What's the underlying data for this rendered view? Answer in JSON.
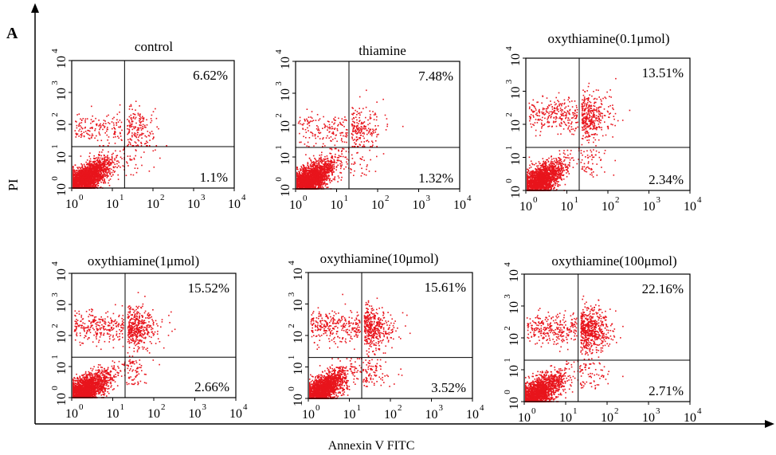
{
  "figure": {
    "panel_letter": "A",
    "x_axis_label": "Annexin V FITC",
    "y_axis_label": "PI"
  },
  "colors": {
    "dots": "#e8141c",
    "axes": "#000000",
    "background": "#ffffff"
  },
  "chart_data": [
    {
      "type": "scatter",
      "title": "control",
      "upper_right_pct": "6.62%",
      "lower_right_pct": "1.1%",
      "x_scale": "log",
      "y_scale": "log",
      "xlim": [
        1,
        10000
      ],
      "ylim": [
        1,
        10000
      ],
      "x_ticks": [
        "10",
        "10",
        "10",
        "10",
        "10"
      ],
      "x_tick_exponents": [
        "0",
        "1",
        "2",
        "3",
        "4"
      ],
      "y_ticks": [
        "10",
        "10",
        "10",
        "10",
        "10"
      ],
      "y_tick_exponents": [
        "0",
        "1",
        "2",
        "3",
        "4"
      ],
      "quadrant_gate": [
        20,
        20
      ],
      "density": {
        "lower_left": 0.86,
        "upper_left": 0.0,
        "lower_right": 0.011,
        "upper_right": 0.066,
        "upper_left_band": 0.06
      }
    },
    {
      "type": "scatter",
      "title": "thiamine",
      "upper_right_pct": "7.48%",
      "lower_right_pct": "1.32%",
      "x_scale": "log",
      "y_scale": "log",
      "xlim": [
        1,
        10000
      ],
      "ylim": [
        1,
        10000
      ],
      "x_ticks": [
        "10",
        "10",
        "10",
        "10",
        "10"
      ],
      "x_tick_exponents": [
        "0",
        "1",
        "2",
        "3",
        "4"
      ],
      "y_ticks": [
        "10",
        "10",
        "10",
        "10",
        "10"
      ],
      "y_tick_exponents": [
        "0",
        "1",
        "2",
        "3",
        "4"
      ],
      "quadrant_gate": [
        20,
        20
      ],
      "density": {
        "lower_left": 0.85,
        "upper_left": 0.0,
        "lower_right": 0.013,
        "upper_right": 0.075,
        "upper_left_band": 0.06
      }
    },
    {
      "type": "scatter",
      "title": "oxythiamine(0.1μmol)",
      "upper_right_pct": "13.51%",
      "lower_right_pct": "2.34%",
      "x_scale": "log",
      "y_scale": "log",
      "xlim": [
        1,
        10000
      ],
      "ylim": [
        1,
        10000
      ],
      "x_ticks": [
        "10",
        "10",
        "10",
        "10",
        "10"
      ],
      "x_tick_exponents": [
        "0",
        "1",
        "2",
        "3",
        "4"
      ],
      "y_ticks": [
        "10",
        "10",
        "10",
        "10",
        "10"
      ],
      "y_tick_exponents": [
        "0",
        "1",
        "2",
        "3",
        "4"
      ],
      "quadrant_gate": [
        20,
        20
      ],
      "density": {
        "lower_left": 0.74,
        "upper_left": 0.0,
        "lower_right": 0.023,
        "upper_right": 0.135,
        "upper_left_band": 0.1
      }
    },
    {
      "type": "scatter",
      "title": "oxythiamine(1μmol)",
      "upper_right_pct": "15.52%",
      "lower_right_pct": "2.66%",
      "x_scale": "log",
      "y_scale": "log",
      "xlim": [
        1,
        10000
      ],
      "ylim": [
        1,
        10000
      ],
      "x_ticks": [
        "10",
        "10",
        "10",
        "10",
        "10"
      ],
      "x_tick_exponents": [
        "0",
        "1",
        "2",
        "3",
        "4"
      ],
      "y_ticks": [
        "10",
        "10",
        "10",
        "10",
        "10"
      ],
      "y_tick_exponents": [
        "0",
        "1",
        "2",
        "3",
        "4"
      ],
      "quadrant_gate": [
        20,
        20
      ],
      "density": {
        "lower_left": 0.72,
        "upper_left": 0.0,
        "lower_right": 0.027,
        "upper_right": 0.155,
        "upper_left_band": 0.1
      }
    },
    {
      "type": "scatter",
      "title": "oxythiamine(10μmol)",
      "upper_right_pct": "15.61%",
      "lower_right_pct": "3.52%",
      "x_scale": "log",
      "y_scale": "log",
      "xlim": [
        1,
        10000
      ],
      "ylim": [
        1,
        10000
      ],
      "x_ticks": [
        "10",
        "10",
        "10",
        "10",
        "10"
      ],
      "x_tick_exponents": [
        "0",
        "1",
        "2",
        "3",
        "4"
      ],
      "y_ticks": [
        "10",
        "10",
        "10",
        "10",
        "10"
      ],
      "y_tick_exponents": [
        "0",
        "1",
        "2",
        "3",
        "4"
      ],
      "quadrant_gate": [
        20,
        20
      ],
      "density": {
        "lower_left": 0.7,
        "upper_left": 0.0,
        "lower_right": 0.035,
        "upper_right": 0.156,
        "upper_left_band": 0.11
      }
    },
    {
      "type": "scatter",
      "title": "oxythiamine(100μmol)",
      "upper_right_pct": "22.16%",
      "lower_right_pct": "2.71%",
      "x_scale": "log",
      "y_scale": "log",
      "xlim": [
        1,
        10000
      ],
      "ylim": [
        1,
        10000
      ],
      "x_ticks": [
        "10",
        "10",
        "10",
        "10",
        "10"
      ],
      "x_tick_exponents": [
        "0",
        "1",
        "2",
        "3",
        "4"
      ],
      "y_ticks": [
        "10",
        "10",
        "10",
        "10",
        "10"
      ],
      "y_tick_exponents": [
        "0",
        "1",
        "2",
        "3",
        "4"
      ],
      "quadrant_gate": [
        20,
        20
      ],
      "density": {
        "lower_left": 0.64,
        "upper_left": 0.0,
        "lower_right": 0.027,
        "upper_right": 0.222,
        "upper_left_band": 0.11
      }
    }
  ]
}
